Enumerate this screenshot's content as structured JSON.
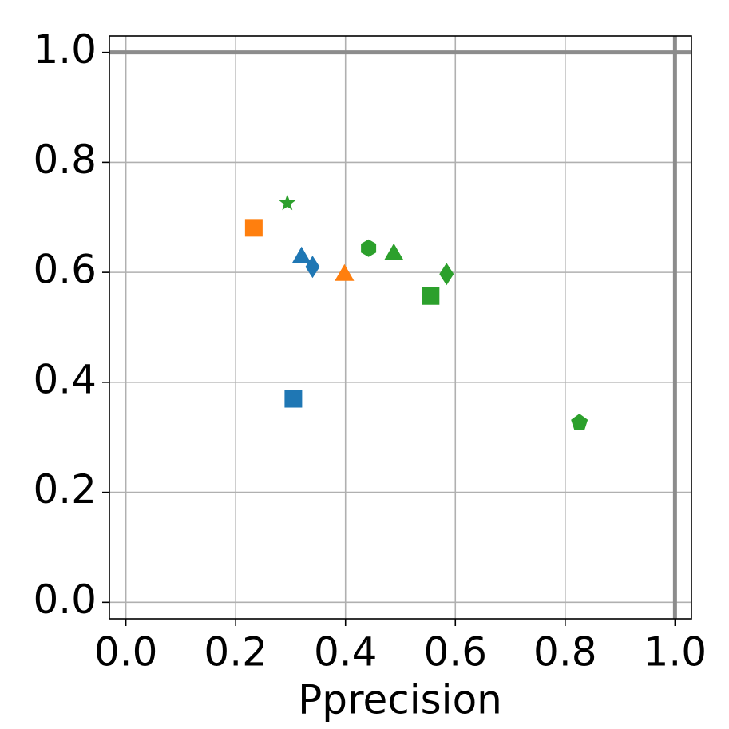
{
  "chart_data": {
    "type": "scatter",
    "x_label": "Pprecision",
    "x": [
      0.305,
      0.32,
      0.34,
      0.233,
      0.398,
      0.294,
      0.442,
      0.488,
      0.584,
      0.555,
      0.826
    ],
    "values": [
      0.37,
      0.631,
      0.61,
      0.681,
      0.599,
      0.726,
      0.644,
      0.637,
      0.597,
      0.557,
      0.327
    ],
    "colors": [
      "#1f77b4",
      "#1f77b4",
      "#1f77b4",
      "#ff7f0e",
      "#ff7f0e",
      "#2ca02c",
      "#2ca02c",
      "#2ca02c",
      "#2ca02c",
      "#2ca02c",
      "#2ca02c"
    ],
    "markers": [
      "square",
      "triangle",
      "diamond",
      "square",
      "triangle",
      "star",
      "hexagon",
      "triangle",
      "diamond",
      "square",
      "pentagon"
    ],
    "xlim": [
      -0.03,
      1.03
    ],
    "ylim": [
      -0.03,
      1.03
    ],
    "xticks": [
      {
        "value": 0,
        "label": "0.0"
      },
      0.2,
      0.4,
      0.6,
      0.8,
      {
        "value": 1,
        "label": "1.0"
      }
    ],
    "yticks": [
      {
        "value": 0,
        "label": "0.0"
      },
      0.2,
      0.4,
      0.6,
      0.8,
      {
        "value": 1,
        "label": "1.0"
      }
    ],
    "grid": true,
    "reference_lines": {
      "x": [
        1
      ],
      "y": [
        1
      ],
      "color": "#8c8c8c"
    }
  }
}
